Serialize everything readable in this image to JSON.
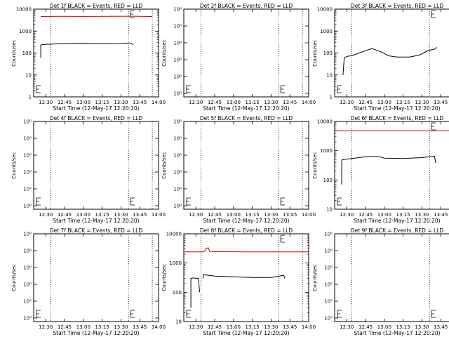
{
  "chart_data": [
    {
      "type": "line",
      "title": "Det 1f BLACK = Events, RED = LLD",
      "xlabel": "Start Time (12-May-17 12:20:20)",
      "ylabel": "Counts/sec",
      "x_tick_labels": [
        "12:30",
        "12:45",
        "13:00",
        "13:15",
        "13:30",
        "13:45",
        "14:00"
      ],
      "y_tick_labels": [
        "1",
        "10",
        "100",
        "1000",
        "10000"
      ],
      "xlim": [
        "12:20:20",
        "14:00:00"
      ],
      "yscale": "log",
      "ylim": [
        1,
        10000
      ],
      "dotted_vlines": [
        "12:34",
        "13:36",
        "13:55"
      ],
      "series": [
        {
          "color": "#000000",
          "x": [
            "12:26",
            "12:26",
            "12:27",
            "12:31",
            "12:45",
            "13:00",
            "13:15",
            "13:30",
            "13:37",
            "13:40"
          ],
          "y": [
            60,
            230,
            240,
            250,
            270,
            275,
            265,
            270,
            290,
            240
          ]
        },
        {
          "color": "#cc0000",
          "x": [
            "12:26",
            "12:40",
            "13:00",
            "13:20",
            "13:40",
            "13:55"
          ],
          "y": [
            4600,
            4700,
            4650,
            4700,
            4750,
            4600
          ]
        }
      ]
    },
    {
      "type": "line",
      "title": "Det 2f BLACK = Events, RED = LLD",
      "xlabel": "Start Time (12-May-17 12:20:20)",
      "ylabel": "Counts/sec",
      "x_tick_labels": [
        "12:30",
        "12:45",
        "13:00",
        "13:15",
        "13:30",
        "13:45",
        "14:00"
      ],
      "y_tick_labels": [
        "10⁰",
        "10⁰",
        "10⁰",
        "10⁰",
        "10⁰",
        "10⁰"
      ],
      "xlim": [
        "12:20:20",
        "14:00:00"
      ],
      "yscale": "log",
      "dotted_vlines": [
        "12:34",
        "13:36",
        "13:55"
      ],
      "series": []
    },
    {
      "type": "line",
      "title": "Det 3f BLACK = Events, RED = LLD",
      "xlabel": "Start Time (12-May-17 12:20:20)",
      "ylabel": "Counts/sec",
      "x_tick_labels": [
        "12:30",
        "12:45",
        "13:00",
        "13:15",
        "13:30",
        "13:45",
        "14:00"
      ],
      "y_tick_labels": [
        "1",
        "10",
        "100",
        "1000",
        "10000"
      ],
      "xlim": [
        "12:20:20",
        "14:00:00"
      ],
      "yscale": "log",
      "ylim": [
        1,
        10000
      ],
      "dotted_vlines": [
        "12:34",
        "13:36",
        "13:55"
      ],
      "series": [
        {
          "color": "#000000",
          "x": [
            "12:27",
            "12:28",
            "12:30",
            "12:34",
            "12:40",
            "12:50",
            "12:58",
            "13:03",
            "13:10",
            "13:20",
            "13:28",
            "13:35",
            "13:40",
            "13:42"
          ],
          "y": [
            10,
            60,
            70,
            75,
            100,
            160,
            110,
            75,
            65,
            65,
            80,
            130,
            150,
            180
          ]
        }
      ]
    },
    {
      "type": "line",
      "title": "Det 4f BLACK = Events, RED = LLD",
      "xlabel": "Start Time (12-May-17 12:20:20)",
      "ylabel": "Counts/sec",
      "x_tick_labels": [
        "12:30",
        "12:45",
        "13:00",
        "13:15",
        "13:30",
        "13:45",
        "14:00"
      ],
      "y_tick_labels": [
        "10⁰",
        "10⁰",
        "10⁰",
        "10⁰",
        "10⁰",
        "10⁰"
      ],
      "xlim": [
        "12:20:20",
        "14:00:00"
      ],
      "yscale": "log",
      "dotted_vlines": [
        "12:34",
        "13:36",
        "13:55"
      ],
      "series": []
    },
    {
      "type": "line",
      "title": "Det 5f BLACK = Events, RED = LLD",
      "xlabel": "Start Time (12-May-17 12:20:20)",
      "ylabel": "Counts/sec",
      "x_tick_labels": [
        "12:30",
        "12:45",
        "13:00",
        "13:15",
        "13:30",
        "13:45",
        "14:00"
      ],
      "y_tick_labels": [
        "10⁰",
        "10⁰",
        "10⁰",
        "10⁰",
        "10⁰",
        "10⁰"
      ],
      "xlim": [
        "12:20:20",
        "14:00:00"
      ],
      "yscale": "log",
      "dotted_vlines": [
        "12:34",
        "13:36",
        "13:55"
      ],
      "series": []
    },
    {
      "type": "line",
      "title": "Det 6f BLACK = Events, RED = LLD",
      "xlabel": "Start Time (12-May-17 12:20:20)",
      "ylabel": "Counts/sec",
      "x_tick_labels": [
        "12:30",
        "12:45",
        "13:00",
        "13:15",
        "13:30",
        "13:45",
        "14:00"
      ],
      "y_tick_labels": [
        "10",
        "100",
        "1000",
        "10000"
      ],
      "xlim": [
        "12:20:20",
        "14:00:00"
      ],
      "yscale": "log",
      "ylim": [
        10,
        10000
      ],
      "dotted_vlines": [
        "12:34",
        "13:36",
        "13:55"
      ],
      "series": [
        {
          "color": "#000000",
          "x": [
            "12:26",
            "12:26",
            "12:27",
            "12:31",
            "12:45",
            "12:55",
            "13:00",
            "13:15",
            "13:30",
            "13:40",
            "13:41"
          ],
          "y": [
            70,
            480,
            500,
            520,
            620,
            640,
            560,
            540,
            580,
            650,
            380
          ]
        },
        {
          "color": "#cc0000",
          "x": [
            "12:21",
            "14:00"
          ],
          "y": [
            4800,
            4800
          ]
        }
      ]
    },
    {
      "type": "line",
      "title": "Det 7f BLACK = Events, RED = LLD",
      "xlabel": "Start Time (12-May-17 12:20:20)",
      "ylabel": "Counts/sec",
      "x_tick_labels": [
        "12:30",
        "12:45",
        "13:00",
        "13:15",
        "13:30",
        "13:45",
        "14:00"
      ],
      "y_tick_labels": [
        "10⁰",
        "10⁰",
        "10⁰",
        "10⁰",
        "10⁰",
        "10⁰"
      ],
      "xlim": [
        "12:20:20",
        "14:00:00"
      ],
      "yscale": "log",
      "dotted_vlines": [
        "12:34",
        "13:36",
        "13:55"
      ],
      "series": []
    },
    {
      "type": "line",
      "title": "Det 8f BLACK = Events, RED = LLD",
      "xlabel": "Start Time (12-May-17 12:20:20)",
      "ylabel": "Counts/sec",
      "x_tick_labels": [
        "12:30",
        "12:45",
        "13:00",
        "13:15",
        "13:30",
        "13:45",
        "14:00"
      ],
      "y_tick_labels": [
        "10",
        "100",
        "1000",
        "10000"
      ],
      "xlim": [
        "12:20:20",
        "14:00:00"
      ],
      "yscale": "log",
      "ylim": [
        10,
        10000
      ],
      "dotted_vlines": [
        "12:34",
        "13:36",
        "13:55"
      ],
      "series": [
        {
          "color": "#000000",
          "x": [
            "12:26",
            "12:26",
            "12:27",
            "12:32",
            "12:33"
          ],
          "y": [
            30,
            300,
            310,
            300,
            100
          ]
        },
        {
          "color": "#000000",
          "x": [
            "12:36",
            "12:36",
            "12:45",
            "13:00",
            "13:15",
            "13:30",
            "13:40",
            "13:41"
          ],
          "y": [
            300,
            400,
            360,
            340,
            320,
            320,
            380,
            300
          ]
        },
        {
          "color": "#cc0000",
          "x": [
            "12:21",
            "12:35",
            "12:37",
            "12:38",
            "12:40",
            "12:41",
            "12:50",
            "13:10",
            "13:30",
            "14:00"
          ],
          "y": [
            2400,
            2400,
            2500,
            3200,
            3300,
            2500,
            2450,
            2400,
            2400,
            2400
          ]
        }
      ]
    },
    {
      "type": "line",
      "title": "Det 9f BLACK = Events, RED = LLD",
      "xlabel": "Start Time (12-May-17 12:20:20)",
      "ylabel": "Counts/sec",
      "x_tick_labels": [
        "12:30",
        "12:45",
        "13:00",
        "13:15",
        "13:30",
        "13:45",
        "14:00"
      ],
      "y_tick_labels": [
        "10⁰",
        "10⁰",
        "10⁰",
        "10⁰",
        "10⁰",
        "10⁰"
      ],
      "xlim": [
        "12:20:20",
        "14:00:00"
      ],
      "yscale": "log",
      "dotted_vlines": [
        "12:34",
        "13:36",
        "13:55"
      ],
      "series": []
    }
  ]
}
